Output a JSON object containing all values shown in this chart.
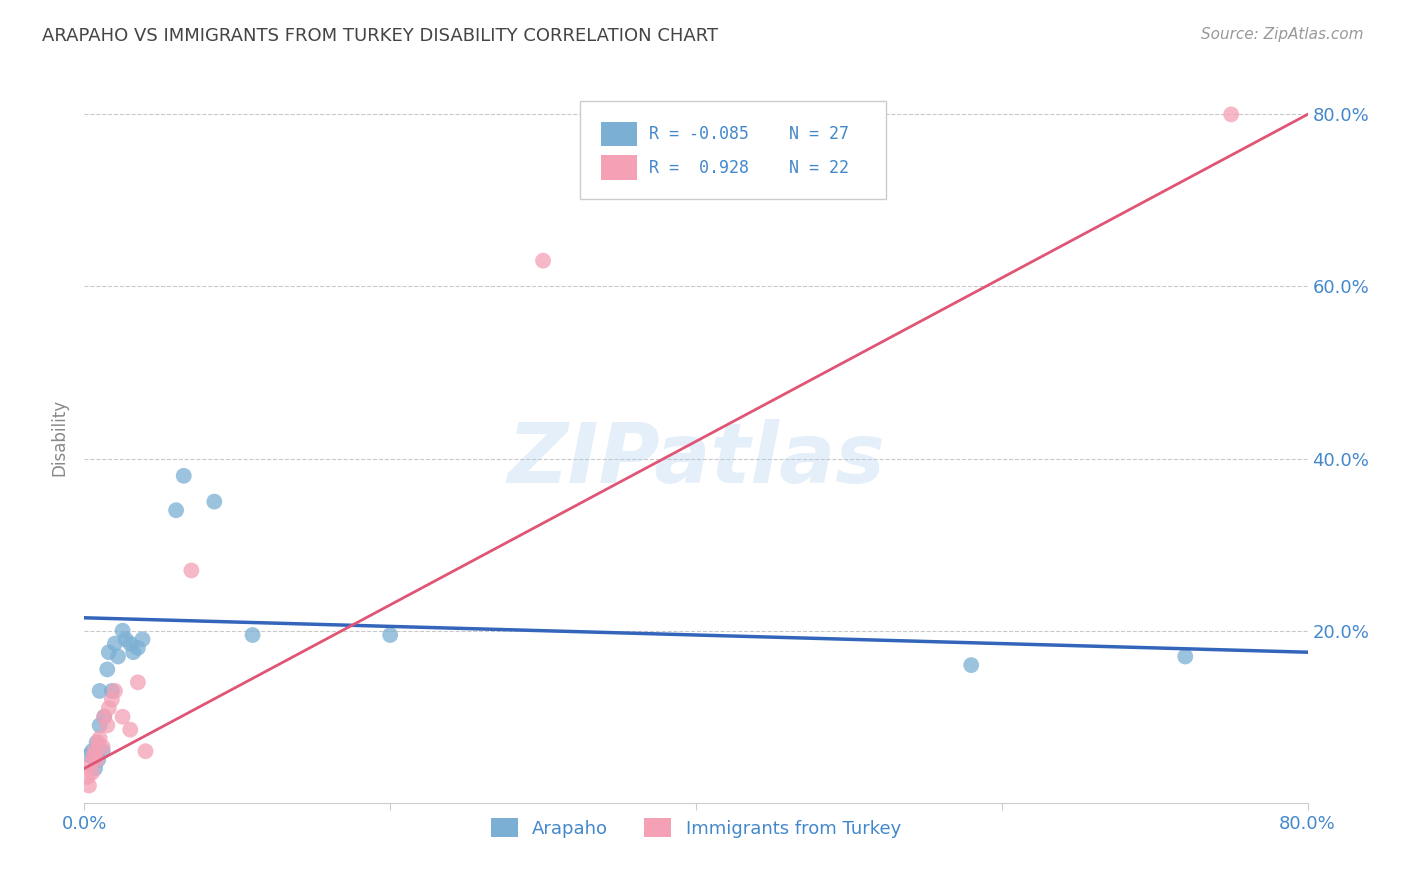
{
  "title": "ARAPAHO VS IMMIGRANTS FROM TURKEY DISABILITY CORRELATION CHART",
  "source": "Source: ZipAtlas.com",
  "ylabel": "Disability",
  "xlim": [
    0.0,
    0.8
  ],
  "ylim": [
    0.0,
    0.85
  ],
  "watermark": "ZIPatlas",
  "legend_blue_R": "-0.085",
  "legend_blue_N": "27",
  "legend_pink_R": "0.928",
  "legend_pink_N": "22",
  "blue_color": "#7BAFD4",
  "pink_color": "#F4A0B5",
  "blue_line_color": "#3366BB",
  "pink_line_color": "#E05575",
  "axis_label_color": "#4488CC",
  "background_color": "#FFFFFF",
  "grid_color": "#BBBBBB",
  "arapaho_x": [
    0.003,
    0.005,
    0.007,
    0.008,
    0.009,
    0.01,
    0.01,
    0.012,
    0.013,
    0.015,
    0.016,
    0.018,
    0.02,
    0.022,
    0.025,
    0.027,
    0.03,
    0.032,
    0.035,
    0.038,
    0.06,
    0.065,
    0.085,
    0.11,
    0.2,
    0.58,
    0.72
  ],
  "arapaho_y": [
    0.055,
    0.06,
    0.04,
    0.07,
    0.05,
    0.13,
    0.09,
    0.06,
    0.1,
    0.155,
    0.175,
    0.13,
    0.185,
    0.17,
    0.2,
    0.19,
    0.185,
    0.175,
    0.18,
    0.19,
    0.34,
    0.38,
    0.35,
    0.195,
    0.195,
    0.16,
    0.17
  ],
  "turkey_x": [
    0.002,
    0.003,
    0.004,
    0.005,
    0.006,
    0.007,
    0.008,
    0.009,
    0.01,
    0.012,
    0.013,
    0.015,
    0.016,
    0.018,
    0.02,
    0.025,
    0.03,
    0.035,
    0.04,
    0.07,
    0.3,
    0.75
  ],
  "turkey_y": [
    0.03,
    0.02,
    0.045,
    0.035,
    0.055,
    0.06,
    0.05,
    0.07,
    0.075,
    0.065,
    0.1,
    0.09,
    0.11,
    0.12,
    0.13,
    0.1,
    0.085,
    0.14,
    0.06,
    0.27,
    0.63,
    0.8
  ],
  "blue_line_x0": 0.0,
  "blue_line_y0": 0.215,
  "blue_line_x1": 0.8,
  "blue_line_y1": 0.175,
  "pink_line_x0": 0.0,
  "pink_line_y0": 0.04,
  "pink_line_x1": 0.8,
  "pink_line_y1": 0.8
}
